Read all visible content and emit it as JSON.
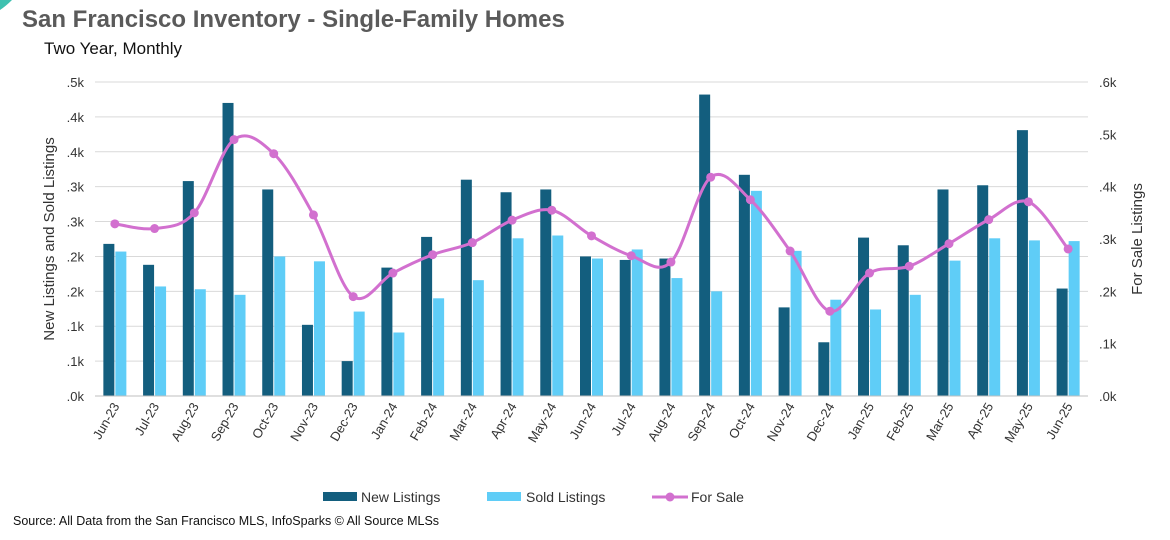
{
  "title": "San Francisco Inventory - Single-Family Homes",
  "subtitle": "Two Year, Monthly",
  "source": "Source: All Data from the San Francisco MLS, InfoSparks © All Source MLSs",
  "colors": {
    "new_listings": "#135e7e",
    "sold_listings": "#5fcdf7",
    "for_sale": "#d270cf",
    "accent": "#3fc1b0",
    "text": "#333333",
    "grid": "#d9d9d9"
  },
  "chart_data": {
    "type": "bar",
    "categories": [
      "Jun-23",
      "Jul-23",
      "Aug-23",
      "Sep-23",
      "Oct-23",
      "Nov-23",
      "Dec-23",
      "Jan-24",
      "Feb-24",
      "Mar-24",
      "Apr-24",
      "May-24",
      "Jun-24",
      "Jul-24",
      "Aug-24",
      "Sep-24",
      "Oct-24",
      "Nov-24",
      "Dec-24",
      "Jan-25",
      "Feb-25",
      "Mar-25",
      "Apr-25",
      "May-25",
      "Jun-25"
    ],
    "left_axis": {
      "label": "New Listings and Sold Listings",
      "ticks": [
        ".0k",
        ".1k",
        ".1k",
        ".2k",
        ".2k",
        ".3k",
        ".3k",
        ".4k",
        ".4k",
        ".5k"
      ],
      "ylim": [
        0,
        450
      ]
    },
    "right_axis": {
      "label": "For Sale Listings",
      "ticks": [
        ".0k",
        ".1k",
        ".2k",
        ".3k",
        ".4k",
        ".5k",
        ".6k"
      ],
      "ylim": [
        0,
        600
      ]
    },
    "series": [
      {
        "name": "New Listings",
        "type": "bar",
        "axis": "left",
        "values": [
          218,
          188,
          308,
          420,
          296,
          102,
          50,
          184,
          228,
          310,
          292,
          296,
          200,
          195,
          197,
          432,
          317,
          127,
          77,
          227,
          216,
          296,
          302,
          381,
          154
        ]
      },
      {
        "name": "Sold Listings",
        "type": "bar",
        "axis": "left",
        "values": [
          207,
          157,
          153,
          145,
          200,
          193,
          121,
          91,
          140,
          166,
          226,
          230,
          197,
          210,
          169,
          150,
          294,
          208,
          138,
          124,
          145,
          194,
          226,
          223,
          222
        ]
      },
      {
        "name": "For Sale",
        "type": "line",
        "axis": "right",
        "values": [
          329,
          320,
          350,
          490,
          463,
          346,
          190,
          235,
          270,
          293,
          336,
          355,
          306,
          268,
          256,
          418,
          375,
          277,
          162,
          235,
          248,
          291,
          337,
          371,
          281
        ]
      }
    ],
    "legend": {
      "placement": "bottom-center",
      "labels": [
        "New Listings",
        "Sold Listings",
        "For Sale"
      ]
    },
    "grid": true
  }
}
